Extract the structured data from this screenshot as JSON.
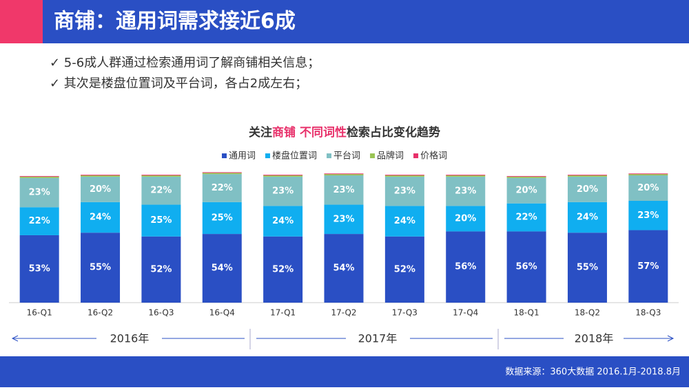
{
  "slide": {
    "header": "商铺：通用词需求接近6成",
    "bullets": [
      "✓ 5-6成人群通过检索通用词了解商铺相关信息；",
      "✓ 其次是楼盘位置词及平台词，各占2成左右；"
    ],
    "years": [
      "2016年",
      "2017年",
      "2018年"
    ],
    "source": "数据来源：360大数据  2016.1月-2018.8月"
  },
  "chart_data": {
    "type": "stacked_bar",
    "title": [
      "关注",
      "商铺 不同词性",
      "检索占比变化趋势"
    ],
    "title_colors": [
      "#333333",
      "#e8306a",
      "#333333"
    ],
    "categories": [
      "16-Q1",
      "16-Q2",
      "16-Q3",
      "16-Q4",
      "17-Q1",
      "17-Q2",
      "17-Q3",
      "17-Q4",
      "18-Q1",
      "18-Q2",
      "18-Q3"
    ],
    "series": [
      {
        "name": "通用词",
        "color": "#2a4fc4",
        "values": [
          53,
          55,
          52,
          54,
          52,
          54,
          52,
          56,
          56,
          55,
          57
        ],
        "value_labels": [
          "53%",
          "55%",
          "52%",
          "54%",
          "52%",
          "54%",
          "52%",
          "56%",
          "56%",
          "55%",
          "57%"
        ]
      },
      {
        "name": "楼盘位置词",
        "color": "#10aef0",
        "values": [
          22,
          24,
          25,
          25,
          24,
          23,
          24,
          20,
          22,
          24,
          23
        ],
        "value_labels": [
          "22%",
          "24%",
          "25%",
          "25%",
          "24%",
          "23%",
          "24%",
          "20%",
          "22%",
          "24%",
          "23%"
        ]
      },
      {
        "name": "平台词",
        "color": "#80c0c4",
        "values": [
          23,
          20,
          22,
          22,
          23,
          23,
          23,
          23,
          20,
          20,
          20
        ],
        "value_labels": [
          "23%",
          "20%",
          "22%",
          "22%",
          "23%",
          "23%",
          "23%",
          "23%",
          "20%",
          "20%",
          "20%"
        ]
      },
      {
        "name": "品牌词",
        "color": "#9ac454",
        "values": [
          1,
          1,
          1,
          1,
          1,
          1,
          1,
          1,
          1,
          1,
          1
        ]
      },
      {
        "name": "价格词",
        "color": "#e8306a",
        "values": [
          0.5,
          0.5,
          0.5,
          0.5,
          0.5,
          0.5,
          0.5,
          0.5,
          0.5,
          0.5,
          0.5
        ]
      }
    ],
    "ylim": [
      0,
      100
    ]
  }
}
